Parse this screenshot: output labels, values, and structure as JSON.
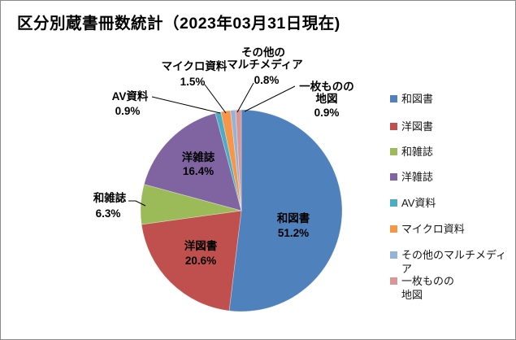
{
  "title": "区分別蔵書冊数統計（2023年03月31日現在)",
  "chart_data": {
    "type": "pie",
    "title": "区分別蔵書冊数統計（2023年03月31日現在)",
    "categories": [
      "和図書",
      "洋図書",
      "和雑誌",
      "洋雑誌",
      "AV資料",
      "マイクロ資料",
      "その他のマルチメディア",
      "一枚ものの地図"
    ],
    "values_percent": [
      51.2,
      20.6,
      6.3,
      16.4,
      0.9,
      1.5,
      0.8,
      0.9
    ],
    "colors": [
      "#4F81BD",
      "#C0504D",
      "#9BBB59",
      "#8064A2",
      "#4BACC6",
      "#F79646",
      "#95B3D7",
      "#D99694"
    ],
    "start_angle_deg": 0,
    "direction": "clockwise",
    "grid": false,
    "legend_position": "right",
    "slice_labels": [
      {
        "name": "和図書",
        "pct": "51.2%",
        "placement": "inside"
      },
      {
        "name": "洋図書",
        "pct": "20.6%",
        "placement": "inside"
      },
      {
        "name": "和雑誌",
        "pct": "6.3%",
        "placement": "outside"
      },
      {
        "name": "洋雑誌",
        "pct": "16.4%",
        "placement": "inside"
      },
      {
        "name": "AV資料",
        "pct": "0.9%",
        "placement": "outside"
      },
      {
        "name": "マイクロ資料",
        "pct": "1.5%",
        "placement": "outside"
      },
      {
        "name": "その他の",
        "name2": "マルチメディア",
        "pct": "0.8%",
        "placement": "outside"
      },
      {
        "name": "一枚ものの",
        "name2": "地図",
        "pct": "0.9%",
        "placement": "outside"
      }
    ],
    "legend_labels": [
      "和図書",
      "洋図書",
      "和雑誌",
      "洋雑誌",
      "AV資料",
      "マイクロ資料",
      "その他のマルチメディア",
      "一枚ものの\n地図"
    ]
  }
}
